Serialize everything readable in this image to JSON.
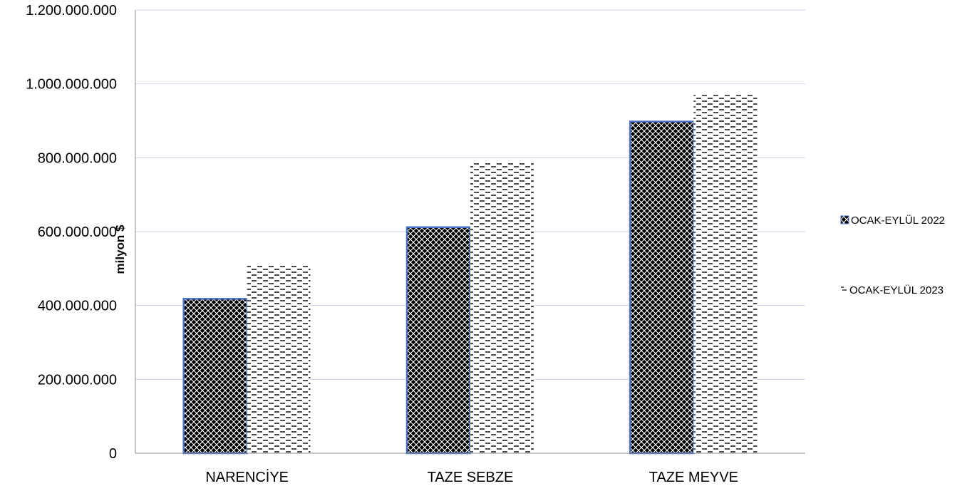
{
  "chart_data": {
    "type": "bar",
    "categories": [
      "NARENCİYE",
      "TAZE SEBZE",
      "TAZE MEYVE"
    ],
    "series": [
      {
        "name": "OCAK-EYLÜL 2022",
        "values": [
          418000000,
          612000000,
          898000000
        ],
        "pattern": "crosshatch-dark"
      },
      {
        "name": "OCAK-EYLÜL 2023",
        "values": [
          508000000,
          786000000,
          970000000
        ],
        "pattern": "dashed-lines"
      }
    ],
    "ylabel": "milyon $",
    "xlabel": "",
    "ylim": [
      0,
      1200000000
    ],
    "yticks": [
      0,
      200000000,
      400000000,
      600000000,
      800000000,
      1000000000,
      1200000000
    ],
    "ytick_labels": [
      "0",
      "200.000.000",
      "400.000.000",
      "600.000.000",
      "800.000.000",
      "1.000.000.000",
      "1.200.000.000"
    ],
    "grid": true,
    "legend_position": "right",
    "colors": {
      "grid": "#c9d7ee",
      "axis": "#8c8c8c",
      "bar_outline_2022": "#4a72c4",
      "ink": "#000000"
    }
  }
}
